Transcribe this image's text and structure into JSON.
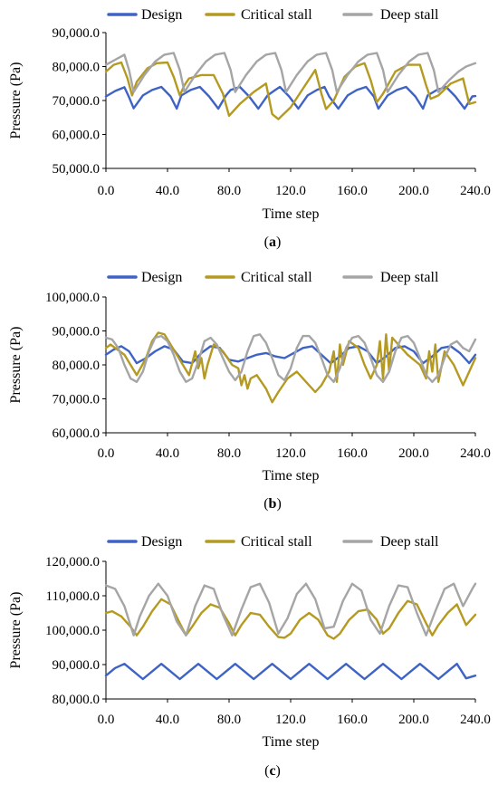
{
  "chart_data": [
    {
      "type": "line",
      "panel": "(a)",
      "xlabel": "Time step",
      "ylabel": "Pressure (Pa)",
      "xlim": [
        0,
        240
      ],
      "ylim": [
        50000,
        90000
      ],
      "xticks": [
        "0.0",
        "40.0",
        "80.0",
        "120.0",
        "160.0",
        "200.0",
        "240.0"
      ],
      "yticks": [
        "50,000.0",
        "60,000.0",
        "70,000.0",
        "80,000.0",
        "90,000.0"
      ],
      "legend_position": "top",
      "grid": false,
      "caption_letter": "a",
      "series": [
        {
          "name": "Design",
          "color": "#3E63C5",
          "x": [
            0,
            6,
            12,
            15,
            18,
            24,
            30,
            36,
            42,
            46,
            49,
            55,
            61,
            67,
            73,
            78,
            81,
            87,
            93,
            99,
            105,
            110,
            113,
            119,
            125,
            131,
            137,
            142,
            145,
            151,
            157,
            163,
            169,
            174,
            177,
            183,
            189,
            195,
            201,
            206,
            209,
            215,
            221,
            227,
            233,
            238,
            240
          ],
          "y": [
            71200,
            72800,
            73900,
            71000,
            67700,
            71500,
            73100,
            74000,
            71200,
            67600,
            71500,
            73100,
            74000,
            71200,
            67600,
            71500,
            73100,
            74000,
            71200,
            67600,
            71500,
            73100,
            74000,
            71200,
            67600,
            71500,
            73100,
            74000,
            71200,
            67600,
            71500,
            73100,
            74000,
            71200,
            67600,
            71500,
            73100,
            74000,
            71200,
            67600,
            71500,
            73100,
            74000,
            71200,
            67600,
            71200,
            71300
          ]
        },
        {
          "name": "Critical stall",
          "color": "#B59A22",
          "x": [
            0,
            5,
            10,
            14,
            17,
            20,
            27,
            33,
            40,
            44,
            48,
            51,
            54,
            62,
            70,
            76,
            80,
            87,
            96,
            104,
            108,
            112,
            120,
            128,
            136,
            140,
            143,
            148,
            155,
            162,
            168,
            172,
            176,
            180,
            188,
            196,
            204,
            208,
            211,
            216,
            224,
            232,
            236,
            240
          ],
          "y": [
            78500,
            80500,
            81200,
            76500,
            71500,
            75500,
            79500,
            81000,
            81200,
            77000,
            71500,
            74500,
            76500,
            77500,
            77500,
            72000,
            65500,
            69000,
            72500,
            75000,
            66000,
            64500,
            68000,
            73500,
            79000,
            72000,
            67500,
            70000,
            77000,
            80000,
            81000,
            76000,
            69500,
            72000,
            78500,
            80500,
            80500,
            74500,
            70500,
            71500,
            75000,
            76500,
            69000,
            69500
          ]
        },
        {
          "name": "Deep stall",
          "color": "#A5A5A5",
          "x": [
            0,
            6,
            12,
            15,
            18,
            25,
            32,
            38,
            44,
            48,
            51,
            58,
            65,
            71,
            77,
            81,
            84,
            91,
            98,
            104,
            110,
            114,
            117,
            124,
            131,
            137,
            143,
            147,
            150,
            157,
            164,
            170,
            176,
            180,
            183,
            190,
            197,
            203,
            209,
            213,
            216,
            223,
            229,
            234,
            240
          ],
          "y": [
            80500,
            82000,
            83500,
            79000,
            72500,
            77500,
            81500,
            83500,
            84000,
            79000,
            72500,
            77500,
            81500,
            83500,
            84000,
            79000,
            72500,
            77500,
            81500,
            83500,
            84000,
            79000,
            72500,
            77500,
            81500,
            83500,
            84000,
            79000,
            72500,
            77500,
            81500,
            83500,
            84000,
            79000,
            72500,
            77500,
            81500,
            83500,
            84000,
            79000,
            72500,
            76000,
            78500,
            80000,
            81000
          ]
        }
      ]
    },
    {
      "type": "line",
      "panel": "(b)",
      "xlabel": "Time step",
      "ylabel": "Pressure (Pa)",
      "xlim": [
        0,
        240
      ],
      "ylim": [
        60000,
        100000
      ],
      "xticks": [
        "0.0",
        "40.0",
        "80.0",
        "120.0",
        "160.0",
        "200.0",
        "240.0"
      ],
      "yticks": [
        "60,000.0",
        "70,000.0",
        "80,000.0",
        "90,000.0",
        "100,000.0"
      ],
      "legend_position": "top",
      "grid": false,
      "caption_letter": "b",
      "series": [
        {
          "name": "Design",
          "color": "#3E63C5",
          "x": [
            0,
            5,
            10,
            15,
            20,
            26,
            32,
            38,
            44,
            50,
            56,
            62,
            68,
            74,
            80,
            86,
            92,
            98,
            104,
            110,
            116,
            122,
            128,
            134,
            140,
            146,
            152,
            158,
            164,
            170,
            176,
            182,
            188,
            194,
            200,
            206,
            212,
            218,
            224,
            230,
            236,
            240
          ],
          "y": [
            83000,
            84500,
            85500,
            84000,
            80500,
            82000,
            84000,
            85500,
            84500,
            81000,
            80500,
            83500,
            85500,
            85000,
            81500,
            81000,
            82000,
            83000,
            83500,
            82500,
            82000,
            83500,
            85000,
            85500,
            83000,
            80500,
            82500,
            85000,
            85500,
            84000,
            80500,
            82500,
            85000,
            85500,
            84000,
            80500,
            82500,
            85000,
            85500,
            83500,
            80500,
            83000
          ]
        },
        {
          "name": "Critical stall",
          "color": "#B59A22",
          "x": [
            0,
            3,
            6,
            9,
            12,
            16,
            20,
            26,
            30,
            34,
            38,
            42,
            46,
            50,
            54,
            58,
            60,
            62,
            64,
            66,
            70,
            76,
            82,
            86,
            88,
            90,
            92,
            94,
            98,
            104,
            108,
            112,
            118,
            124,
            130,
            136,
            140,
            145,
            148,
            150,
            152,
            154,
            158,
            164,
            168,
            172,
            176,
            178,
            180,
            182,
            184,
            186,
            190,
            196,
            204,
            208,
            210,
            212,
            214,
            216,
            220,
            226,
            232,
            236,
            240
          ],
          "y": [
            85000,
            86000,
            85000,
            84000,
            83000,
            80000,
            77000,
            82000,
            87000,
            89500,
            89000,
            86000,
            83000,
            80000,
            77000,
            84000,
            79000,
            82000,
            76000,
            80000,
            86000,
            84000,
            80000,
            79000,
            74000,
            77000,
            73000,
            76000,
            77000,
            73000,
            69000,
            72000,
            76000,
            78000,
            75000,
            72000,
            74000,
            78000,
            84000,
            75000,
            86000,
            80000,
            87000,
            85000,
            80000,
            76000,
            80000,
            87000,
            76000,
            89000,
            78000,
            88000,
            86000,
            83000,
            80000,
            76000,
            84000,
            78000,
            86000,
            75000,
            84000,
            80000,
            74000,
            78000,
            82000
          ]
        },
        {
          "name": "Deep stall",
          "color": "#A5A5A5",
          "x": [
            0,
            4,
            8,
            12,
            16,
            20,
            24,
            28,
            32,
            36,
            40,
            44,
            48,
            52,
            56,
            60,
            64,
            68,
            72,
            76,
            80,
            84,
            88,
            92,
            96,
            100,
            104,
            108,
            112,
            116,
            120,
            124,
            128,
            132,
            136,
            140,
            144,
            148,
            152,
            156,
            160,
            164,
            168,
            172,
            176,
            180,
            184,
            188,
            192,
            196,
            200,
            204,
            208,
            212,
            216,
            220,
            224,
            228,
            232,
            236,
            240
          ],
          "y": [
            88000,
            87500,
            85000,
            80000,
            76000,
            75000,
            78000,
            84000,
            88000,
            88500,
            87000,
            83000,
            78000,
            75000,
            76000,
            81000,
            87000,
            88000,
            86000,
            82000,
            78000,
            75500,
            78000,
            84000,
            88500,
            89000,
            86500,
            82000,
            77000,
            75500,
            79000,
            85000,
            88500,
            88500,
            86500,
            82000,
            77000,
            75000,
            79000,
            85000,
            88000,
            88500,
            86500,
            82000,
            77000,
            75000,
            78000,
            84000,
            88000,
            88500,
            86500,
            82000,
            77000,
            75000,
            77000,
            82000,
            86000,
            87000,
            85000,
            84000,
            87500
          ]
        }
      ]
    },
    {
      "type": "line",
      "panel": "(c)",
      "xlabel": "Time step",
      "ylabel": "Pressure (Pa)",
      "xlim": [
        0,
        240
      ],
      "ylim": [
        80000,
        120000
      ],
      "xticks": [
        "0.0",
        "40.0",
        "80.0",
        "120.0",
        "160.0",
        "200.0",
        "240.0"
      ],
      "yticks": [
        "80,000.0",
        "90,000.0",
        "100,000.0",
        "110,000.0",
        "120,000.0"
      ],
      "legend_position": "top",
      "grid": false,
      "caption_letter": "c",
      "series": [
        {
          "name": "Design",
          "color": "#3E63C5",
          "x": [
            0,
            6,
            12,
            18,
            24,
            30,
            36,
            42,
            48,
            54,
            60,
            66,
            72,
            78,
            84,
            90,
            96,
            102,
            108,
            114,
            120,
            126,
            132,
            138,
            144,
            150,
            156,
            162,
            168,
            174,
            180,
            186,
            192,
            198,
            204,
            210,
            216,
            222,
            228,
            234,
            240
          ],
          "y": [
            86800,
            89000,
            90200,
            88000,
            85800,
            88000,
            90200,
            88000,
            85800,
            88000,
            90200,
            88000,
            85800,
            88000,
            90200,
            88000,
            85800,
            88000,
            90200,
            88000,
            85800,
            88000,
            90200,
            88000,
            85800,
            88000,
            90200,
            88000,
            85800,
            88000,
            90200,
            88000,
            85800,
            88000,
            90200,
            88000,
            85800,
            88000,
            90200,
            86000,
            86800
          ]
        },
        {
          "name": "Critical stall",
          "color": "#B59A22",
          "x": [
            0,
            4,
            10,
            16,
            20,
            24,
            30,
            36,
            42,
            48,
            52,
            56,
            62,
            68,
            74,
            80,
            84,
            88,
            94,
            100,
            106,
            112,
            116,
            120,
            126,
            132,
            138,
            144,
            148,
            152,
            158,
            164,
            170,
            176,
            180,
            184,
            190,
            196,
            202,
            208,
            212,
            216,
            222,
            228,
            234,
            240
          ],
          "y": [
            105000,
            105500,
            104000,
            101000,
            98500,
            101000,
            105500,
            109000,
            107500,
            102000,
            98500,
            101000,
            105000,
            107500,
            106500,
            102000,
            98500,
            101500,
            105000,
            104500,
            101000,
            98000,
            97800,
            99000,
            103000,
            105000,
            103000,
            98500,
            97500,
            99000,
            103000,
            105500,
            106000,
            103000,
            99000,
            100500,
            105000,
            108500,
            107500,
            102000,
            98500,
            101500,
            105000,
            107500,
            101500,
            104500
          ]
        },
        {
          "name": "Deep stall",
          "color": "#A5A5A5",
          "x": [
            0,
            6,
            12,
            18,
            22,
            28,
            34,
            40,
            46,
            52,
            58,
            64,
            70,
            76,
            82,
            88,
            94,
            100,
            106,
            112,
            118,
            124,
            130,
            136,
            142,
            148,
            154,
            160,
            166,
            172,
            178,
            184,
            190,
            196,
            202,
            208,
            214,
            220,
            226,
            232,
            238,
            240
          ],
          "y": [
            113000,
            112000,
            107000,
            98500,
            104000,
            110000,
            113500,
            110000,
            102500,
            98500,
            107000,
            113000,
            112000,
            104500,
            98500,
            106000,
            112500,
            113500,
            108000,
            99000,
            103500,
            110500,
            113500,
            109000,
            100500,
            101000,
            108500,
            113500,
            111500,
            103000,
            99000,
            107000,
            113000,
            112500,
            105000,
            98500,
            105500,
            112000,
            113500,
            107000,
            112000,
            113500
          ]
        }
      ]
    }
  ]
}
